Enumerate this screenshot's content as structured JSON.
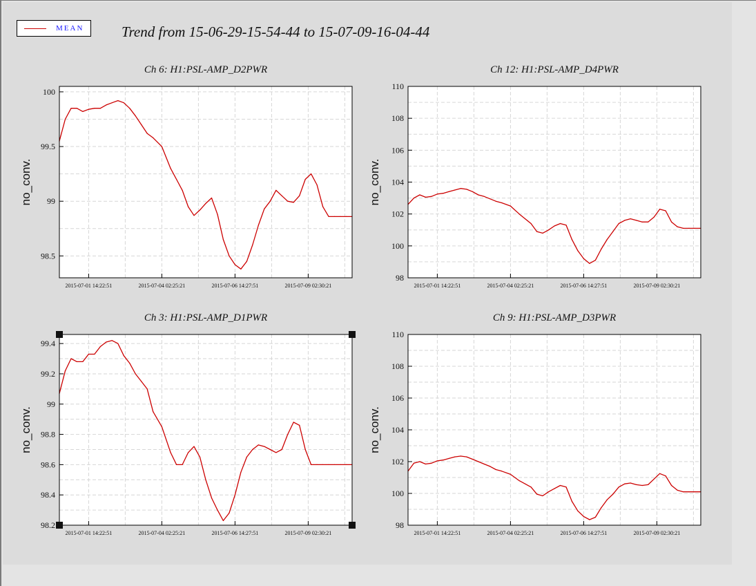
{
  "window": {
    "legend_label": "MEAN",
    "title": "Trend from 15-06-29-15-54-44 to 15-07-09-16-04-44"
  },
  "colors": {
    "series": "#cc0000",
    "legend_text": "#1a1aff",
    "panel_bg": "#dcdcdc"
  },
  "chart_data": [
    {
      "type": "line",
      "title": "Ch 6: H1:PSL-AMP_D2PWR",
      "ylabel": "no_conv.",
      "xticks": [
        "2015-07-01 14:22:51",
        "2015-07-04 02:25:21",
        "2015-07-06 14:27:51",
        "2015-07-09 02:30:21"
      ],
      "xlim": [
        0,
        1
      ],
      "ylim": [
        98.3,
        100.05
      ],
      "yticks": [
        98.5,
        99,
        99.5,
        100
      ],
      "ytick_labels": [
        "98.5",
        "99",
        "99.5",
        "100"
      ],
      "minor_y": [
        98.5,
        98.75,
        99,
        99.25,
        99.5,
        99.75,
        100
      ],
      "grid": true,
      "series": [
        {
          "x": [
            0,
            0.02,
            0.04,
            0.06,
            0.08,
            0.1,
            0.12,
            0.14,
            0.16,
            0.18,
            0.2,
            0.22,
            0.24,
            0.26,
            0.28,
            0.3,
            0.32,
            0.35,
            0.38,
            0.4,
            0.42,
            0.44,
            0.46,
            0.48,
            0.5,
            0.52,
            0.54,
            0.56,
            0.58,
            0.6,
            0.62,
            0.64,
            0.66,
            0.68,
            0.7,
            0.72,
            0.74,
            0.76,
            0.78,
            0.8,
            0.82,
            0.84,
            0.86,
            0.88,
            0.9,
            0.92,
            0.94,
            0.96,
            0.98,
            1
          ],
          "y": [
            99.55,
            99.75,
            99.85,
            99.85,
            99.82,
            99.84,
            99.85,
            99.85,
            99.88,
            99.9,
            99.92,
            99.9,
            99.85,
            99.78,
            99.7,
            99.62,
            99.58,
            99.5,
            99.3,
            99.2,
            99.1,
            98.95,
            98.87,
            98.92,
            98.98,
            99.03,
            98.88,
            98.65,
            98.5,
            98.42,
            98.38,
            98.45,
            98.6,
            98.78,
            98.93,
            99.0,
            99.1,
            99.05,
            99.0,
            98.99,
            99.05,
            99.2,
            99.25,
            99.15,
            98.95,
            98.86,
            98.86,
            98.86,
            98.86,
            98.86
          ]
        }
      ]
    },
    {
      "type": "line",
      "title": "Ch 12: H1:PSL-AMP_D4PWR",
      "ylabel": "no_conv.",
      "xticks": [
        "2015-07-01 14:22:51",
        "2015-07-04 02:25:21",
        "2015-07-06 14:27:51",
        "2015-07-09 02:30:21"
      ],
      "xlim": [
        0,
        1
      ],
      "ylim": [
        98,
        110
      ],
      "yticks": [
        98,
        100,
        102,
        104,
        106,
        108,
        110
      ],
      "ytick_labels": [
        "98",
        "100",
        "102",
        "104",
        "106",
        "108",
        "110"
      ],
      "minor_y": [
        99,
        100,
        101,
        102,
        103,
        104,
        105,
        106,
        107,
        108,
        109
      ],
      "grid": true,
      "series": [
        {
          "x": [
            0,
            0.02,
            0.04,
            0.06,
            0.08,
            0.1,
            0.12,
            0.14,
            0.16,
            0.18,
            0.2,
            0.22,
            0.24,
            0.26,
            0.28,
            0.3,
            0.32,
            0.35,
            0.38,
            0.4,
            0.42,
            0.44,
            0.46,
            0.48,
            0.5,
            0.52,
            0.54,
            0.56,
            0.58,
            0.6,
            0.62,
            0.64,
            0.66,
            0.68,
            0.7,
            0.72,
            0.74,
            0.76,
            0.78,
            0.8,
            0.82,
            0.84,
            0.86,
            0.88,
            0.9,
            0.92,
            0.94,
            0.96,
            0.98,
            1
          ],
          "y": [
            102.6,
            103.0,
            103.2,
            103.05,
            103.1,
            103.25,
            103.3,
            103.4,
            103.5,
            103.6,
            103.55,
            103.4,
            103.2,
            103.1,
            102.95,
            102.8,
            102.7,
            102.5,
            102.0,
            101.7,
            101.4,
            100.9,
            100.8,
            101.0,
            101.25,
            101.4,
            101.3,
            100.4,
            99.7,
            99.2,
            98.9,
            99.1,
            99.8,
            100.4,
            100.9,
            101.4,
            101.6,
            101.7,
            101.6,
            101.5,
            101.5,
            101.8,
            102.3,
            102.2,
            101.5,
            101.2,
            101.1,
            101.1,
            101.1,
            101.1
          ]
        }
      ]
    },
    {
      "type": "line",
      "title": "Ch 3: H1:PSL-AMP_D1PWR",
      "ylabel": "no_conv.",
      "xticks": [
        "2015-07-01 14:22:51",
        "2015-07-04 02:25:21",
        "2015-07-06 14:27:51",
        "2015-07-09 02:30:21"
      ],
      "xlim": [
        0,
        1
      ],
      "ylim": [
        98.2,
        99.46
      ],
      "yticks": [
        98.2,
        98.4,
        98.6,
        98.8,
        99,
        99.2,
        99.4
      ],
      "ytick_labels": [
        "98.2",
        "98.4",
        "98.6",
        "98.8",
        "99",
        "99.2",
        "99.4"
      ],
      "minor_y": [
        98.3,
        98.4,
        98.5,
        98.6,
        98.7,
        98.8,
        98.9,
        99.0,
        99.1,
        99.2,
        99.3,
        99.4
      ],
      "grid": true,
      "selected": true,
      "series": [
        {
          "x": [
            0,
            0.02,
            0.04,
            0.06,
            0.08,
            0.1,
            0.12,
            0.14,
            0.16,
            0.18,
            0.2,
            0.22,
            0.24,
            0.26,
            0.28,
            0.3,
            0.32,
            0.35,
            0.38,
            0.4,
            0.42,
            0.44,
            0.46,
            0.48,
            0.5,
            0.52,
            0.54,
            0.56,
            0.58,
            0.6,
            0.62,
            0.64,
            0.66,
            0.68,
            0.7,
            0.72,
            0.74,
            0.76,
            0.78,
            0.8,
            0.82,
            0.84,
            0.86,
            0.88,
            0.9,
            0.92,
            0.94,
            0.96,
            0.98,
            1
          ],
          "y": [
            99.07,
            99.22,
            99.3,
            99.28,
            99.28,
            99.33,
            99.33,
            99.38,
            99.41,
            99.42,
            99.4,
            99.32,
            99.27,
            99.2,
            99.15,
            99.1,
            98.95,
            98.85,
            98.68,
            98.6,
            98.6,
            98.68,
            98.72,
            98.65,
            98.5,
            98.38,
            98.3,
            98.23,
            98.28,
            98.4,
            98.55,
            98.65,
            98.7,
            98.73,
            98.72,
            98.7,
            98.68,
            98.7,
            98.8,
            98.88,
            98.86,
            98.7,
            98.6,
            98.6,
            98.6,
            98.6,
            98.6,
            98.6,
            98.6,
            98.6
          ]
        }
      ]
    },
    {
      "type": "line",
      "title": "Ch 9: H1:PSL-AMP_D3PWR",
      "ylabel": "no_conv.",
      "xticks": [
        "2015-07-01 14:22:51",
        "2015-07-04 02:25:21",
        "2015-07-06 14:27:51",
        "2015-07-09 02:30:21"
      ],
      "xlim": [
        0,
        1
      ],
      "ylim": [
        98,
        110
      ],
      "yticks": [
        98,
        100,
        102,
        104,
        106,
        108,
        110
      ],
      "ytick_labels": [
        "98",
        "100",
        "102",
        "104",
        "106",
        "108",
        "110"
      ],
      "minor_y": [
        99,
        100,
        101,
        102,
        103,
        104,
        105,
        106,
        107,
        108,
        109
      ],
      "grid": true,
      "series": [
        {
          "x": [
            0,
            0.02,
            0.04,
            0.06,
            0.08,
            0.1,
            0.12,
            0.14,
            0.16,
            0.18,
            0.2,
            0.22,
            0.24,
            0.26,
            0.28,
            0.3,
            0.32,
            0.35,
            0.38,
            0.4,
            0.42,
            0.44,
            0.46,
            0.48,
            0.5,
            0.52,
            0.54,
            0.56,
            0.58,
            0.6,
            0.62,
            0.64,
            0.66,
            0.68,
            0.7,
            0.72,
            0.74,
            0.76,
            0.78,
            0.8,
            0.82,
            0.84,
            0.86,
            0.88,
            0.9,
            0.92,
            0.94,
            0.96,
            0.98,
            1
          ],
          "y": [
            101.4,
            101.9,
            102.0,
            101.85,
            101.9,
            102.05,
            102.1,
            102.2,
            102.3,
            102.35,
            102.3,
            102.15,
            102.0,
            101.85,
            101.7,
            101.5,
            101.4,
            101.2,
            100.8,
            100.6,
            100.4,
            99.95,
            99.85,
            100.1,
            100.3,
            100.5,
            100.4,
            99.5,
            98.9,
            98.55,
            98.35,
            98.5,
            99.1,
            99.6,
            99.95,
            100.4,
            100.6,
            100.65,
            100.55,
            100.5,
            100.55,
            100.9,
            101.25,
            101.1,
            100.5,
            100.2,
            100.1,
            100.1,
            100.1,
            100.1
          ]
        }
      ]
    }
  ]
}
